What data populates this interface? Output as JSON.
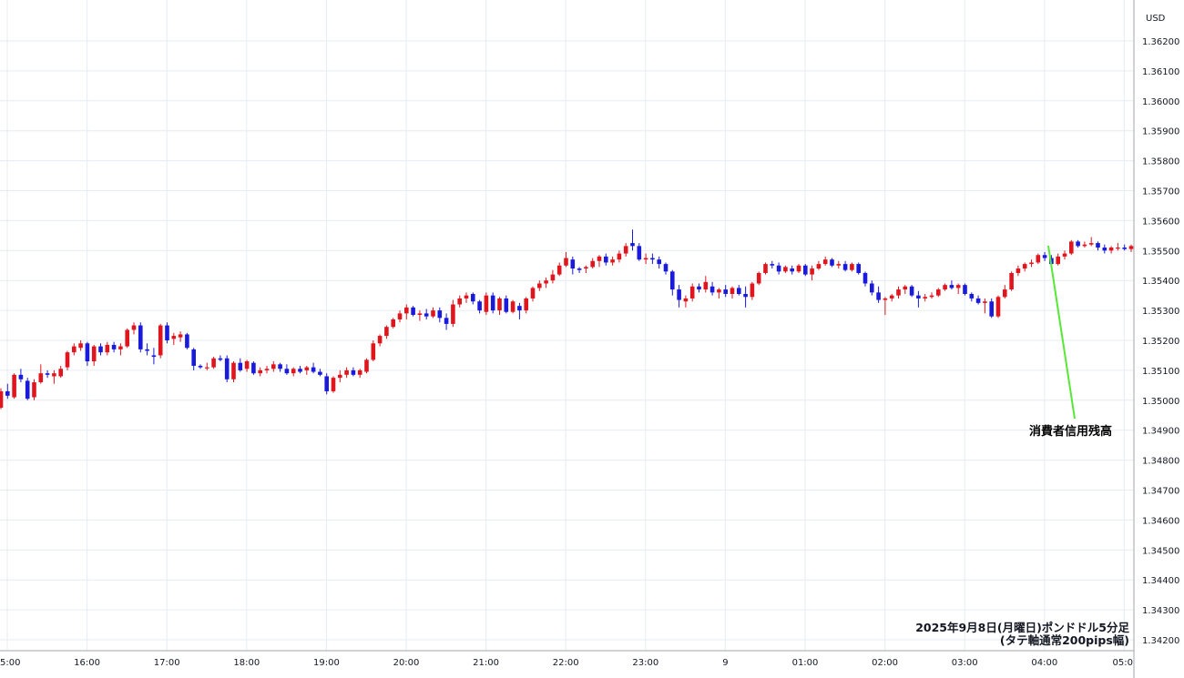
{
  "chart_data": {
    "type": "candlestick",
    "currency_label": "USD",
    "caption_line1": "2025年9月8日(月曜日)ポンドドル5分足",
    "caption_line2": "(タテ軸通常200pips幅)",
    "annotation": "消費者信用残高",
    "ylim": [
      1.3415,
      1.3627
    ],
    "y_ticks": [
      "1.36200",
      "1.36100",
      "1.36000",
      "1.35900",
      "1.35800",
      "1.35700",
      "1.35600",
      "1.35500",
      "1.35400",
      "1.35300",
      "1.35200",
      "1.35100",
      "1.35000",
      "1.34900",
      "1.34800",
      "1.34700",
      "1.34600",
      "1.34500",
      "1.34400",
      "1.34300",
      "1.34200"
    ],
    "x_ticks": [
      "5:00",
      "16:00",
      "17:00",
      "18:00",
      "19:00",
      "20:00",
      "21:00",
      "22:00",
      "23:00",
      "9",
      "01:00",
      "02:00",
      "03:00",
      "04:00",
      "05:0"
    ],
    "colors": {
      "up": "#e0161e",
      "down": "#1a1adb",
      "grid": "#e6ecf2",
      "axis": "#a0a4ab",
      "annotation_line": "#55e835"
    },
    "candles": [
      {
        "o": 1.34975,
        "h": 1.3504,
        "l": 1.3497,
        "c": 1.3503
      },
      {
        "o": 1.3503,
        "h": 1.35055,
        "l": 1.35005,
        "c": 1.35015
      },
      {
        "o": 1.3501,
        "h": 1.3509,
        "l": 1.35005,
        "c": 1.35085
      },
      {
        "o": 1.35085,
        "h": 1.35105,
        "l": 1.3506,
        "c": 1.3507
      },
      {
        "o": 1.35065,
        "h": 1.35075,
        "l": 1.35,
        "c": 1.35005
      },
      {
        "o": 1.3501,
        "h": 1.3507,
        "l": 1.35,
        "c": 1.3506
      },
      {
        "o": 1.3506,
        "h": 1.3512,
        "l": 1.35055,
        "c": 1.3509
      },
      {
        "o": 1.3509,
        "h": 1.351,
        "l": 1.35075,
        "c": 1.35085
      },
      {
        "o": 1.3508,
        "h": 1.351,
        "l": 1.35055,
        "c": 1.3509
      },
      {
        "o": 1.3508,
        "h": 1.35115,
        "l": 1.35075,
        "c": 1.35105
      },
      {
        "o": 1.3511,
        "h": 1.35165,
        "l": 1.351,
        "c": 1.3516
      },
      {
        "o": 1.3516,
        "h": 1.3519,
        "l": 1.3515,
        "c": 1.3518
      },
      {
        "o": 1.35175,
        "h": 1.352,
        "l": 1.35165,
        "c": 1.3519
      },
      {
        "o": 1.3519,
        "h": 1.35195,
        "l": 1.35115,
        "c": 1.3513
      },
      {
        "o": 1.3513,
        "h": 1.35185,
        "l": 1.35115,
        "c": 1.3518
      },
      {
        "o": 1.3518,
        "h": 1.3519,
        "l": 1.3515,
        "c": 1.3516
      },
      {
        "o": 1.3516,
        "h": 1.35195,
        "l": 1.3515,
        "c": 1.35185
      },
      {
        "o": 1.35185,
        "h": 1.35195,
        "l": 1.3516,
        "c": 1.3517
      },
      {
        "o": 1.3517,
        "h": 1.3519,
        "l": 1.3515,
        "c": 1.3518
      },
      {
        "o": 1.3518,
        "h": 1.3524,
        "l": 1.35175,
        "c": 1.35235
      },
      {
        "o": 1.35235,
        "h": 1.3526,
        "l": 1.3522,
        "c": 1.3525
      },
      {
        "o": 1.3525,
        "h": 1.3526,
        "l": 1.3516,
        "c": 1.3517
      },
      {
        "o": 1.3517,
        "h": 1.3519,
        "l": 1.3515,
        "c": 1.35165
      },
      {
        "o": 1.3515,
        "h": 1.35175,
        "l": 1.3512,
        "c": 1.35145
      },
      {
        "o": 1.3515,
        "h": 1.35255,
        "l": 1.3514,
        "c": 1.3525
      },
      {
        "o": 1.3525,
        "h": 1.3526,
        "l": 1.3519,
        "c": 1.352
      },
      {
        "o": 1.35205,
        "h": 1.35225,
        "l": 1.35185,
        "c": 1.35215
      },
      {
        "o": 1.3521,
        "h": 1.3523,
        "l": 1.35195,
        "c": 1.3522
      },
      {
        "o": 1.3522,
        "h": 1.35225,
        "l": 1.3517,
        "c": 1.35175
      },
      {
        "o": 1.3517,
        "h": 1.35175,
        "l": 1.351,
        "c": 1.35115
      },
      {
        "o": 1.35115,
        "h": 1.3512,
        "l": 1.35105,
        "c": 1.3511
      },
      {
        "o": 1.3511,
        "h": 1.35125,
        "l": 1.351,
        "c": 1.3511
      },
      {
        "o": 1.3511,
        "h": 1.35145,
        "l": 1.35105,
        "c": 1.3514
      },
      {
        "o": 1.3514,
        "h": 1.3515,
        "l": 1.3513,
        "c": 1.35135
      },
      {
        "o": 1.3514,
        "h": 1.3515,
        "l": 1.3506,
        "c": 1.3507
      },
      {
        "o": 1.3507,
        "h": 1.3513,
        "l": 1.3506,
        "c": 1.35125
      },
      {
        "o": 1.35125,
        "h": 1.3514,
        "l": 1.35095,
        "c": 1.351
      },
      {
        "o": 1.35105,
        "h": 1.35135,
        "l": 1.35095,
        "c": 1.3513
      },
      {
        "o": 1.35125,
        "h": 1.3513,
        "l": 1.35085,
        "c": 1.3509
      },
      {
        "o": 1.3509,
        "h": 1.3511,
        "l": 1.3508,
        "c": 1.351
      },
      {
        "o": 1.351,
        "h": 1.35115,
        "l": 1.3509,
        "c": 1.35105
      },
      {
        "o": 1.35105,
        "h": 1.3513,
        "l": 1.35095,
        "c": 1.3512
      },
      {
        "o": 1.3512,
        "h": 1.35125,
        "l": 1.35095,
        "c": 1.35105
      },
      {
        "o": 1.35105,
        "h": 1.3512,
        "l": 1.35085,
        "c": 1.3509
      },
      {
        "o": 1.3509,
        "h": 1.3511,
        "l": 1.3508,
        "c": 1.35105
      },
      {
        "o": 1.35105,
        "h": 1.35115,
        "l": 1.3509,
        "c": 1.35095
      },
      {
        "o": 1.351,
        "h": 1.35115,
        "l": 1.35085,
        "c": 1.3511
      },
      {
        "o": 1.3511,
        "h": 1.35125,
        "l": 1.3509,
        "c": 1.35095
      },
      {
        "o": 1.35095,
        "h": 1.35105,
        "l": 1.3508,
        "c": 1.35085
      },
      {
        "o": 1.3508,
        "h": 1.3509,
        "l": 1.3502,
        "c": 1.3503
      },
      {
        "o": 1.3503,
        "h": 1.3508,
        "l": 1.35025,
        "c": 1.35075
      },
      {
        "o": 1.35075,
        "h": 1.351,
        "l": 1.3506,
        "c": 1.35085
      },
      {
        "o": 1.35085,
        "h": 1.3511,
        "l": 1.35075,
        "c": 1.351
      },
      {
        "o": 1.351,
        "h": 1.3511,
        "l": 1.3508,
        "c": 1.35085
      },
      {
        "o": 1.35085,
        "h": 1.35105,
        "l": 1.35075,
        "c": 1.351
      },
      {
        "o": 1.35095,
        "h": 1.3514,
        "l": 1.3509,
        "c": 1.35135
      },
      {
        "o": 1.35135,
        "h": 1.352,
        "l": 1.3513,
        "c": 1.3519
      },
      {
        "o": 1.3519,
        "h": 1.3522,
        "l": 1.3518,
        "c": 1.35215
      },
      {
        "o": 1.35215,
        "h": 1.3525,
        "l": 1.35205,
        "c": 1.35245
      },
      {
        "o": 1.35245,
        "h": 1.35275,
        "l": 1.3524,
        "c": 1.3527
      },
      {
        "o": 1.3527,
        "h": 1.353,
        "l": 1.3526,
        "c": 1.3529
      },
      {
        "o": 1.3529,
        "h": 1.3532,
        "l": 1.3527,
        "c": 1.3531
      },
      {
        "o": 1.3531,
        "h": 1.35315,
        "l": 1.3528,
        "c": 1.35285
      },
      {
        "o": 1.35285,
        "h": 1.353,
        "l": 1.35265,
        "c": 1.3529
      },
      {
        "o": 1.3529,
        "h": 1.35305,
        "l": 1.3527,
        "c": 1.3528
      },
      {
        "o": 1.3528,
        "h": 1.3531,
        "l": 1.35275,
        "c": 1.353
      },
      {
        "o": 1.353,
        "h": 1.3531,
        "l": 1.3526,
        "c": 1.35275
      },
      {
        "o": 1.35275,
        "h": 1.3529,
        "l": 1.35235,
        "c": 1.35255
      },
      {
        "o": 1.35255,
        "h": 1.35335,
        "l": 1.35245,
        "c": 1.3532
      },
      {
        "o": 1.3532,
        "h": 1.3535,
        "l": 1.3531,
        "c": 1.3534
      },
      {
        "o": 1.3534,
        "h": 1.3536,
        "l": 1.35325,
        "c": 1.3535
      },
      {
        "o": 1.35355,
        "h": 1.3536,
        "l": 1.3532,
        "c": 1.3533
      },
      {
        "o": 1.3533,
        "h": 1.35335,
        "l": 1.3529,
        "c": 1.353
      },
      {
        "o": 1.35295,
        "h": 1.3536,
        "l": 1.35285,
        "c": 1.3535
      },
      {
        "o": 1.3535,
        "h": 1.3536,
        "l": 1.3529,
        "c": 1.353
      },
      {
        "o": 1.353,
        "h": 1.35345,
        "l": 1.35285,
        "c": 1.3534
      },
      {
        "o": 1.3534,
        "h": 1.3535,
        "l": 1.3529,
        "c": 1.35295
      },
      {
        "o": 1.35295,
        "h": 1.35335,
        "l": 1.3529,
        "c": 1.3533
      },
      {
        "o": 1.35315,
        "h": 1.35325,
        "l": 1.3527,
        "c": 1.353
      },
      {
        "o": 1.353,
        "h": 1.35345,
        "l": 1.3529,
        "c": 1.3534
      },
      {
        "o": 1.3534,
        "h": 1.3538,
        "l": 1.3533,
        "c": 1.35375
      },
      {
        "o": 1.35375,
        "h": 1.354,
        "l": 1.35365,
        "c": 1.3539
      },
      {
        "o": 1.3539,
        "h": 1.3541,
        "l": 1.35375,
        "c": 1.354
      },
      {
        "o": 1.354,
        "h": 1.35435,
        "l": 1.3539,
        "c": 1.3542
      },
      {
        "o": 1.3542,
        "h": 1.3546,
        "l": 1.35415,
        "c": 1.3545
      },
      {
        "o": 1.3545,
        "h": 1.35495,
        "l": 1.35445,
        "c": 1.35475
      },
      {
        "o": 1.3547,
        "h": 1.3548,
        "l": 1.3542,
        "c": 1.3544
      },
      {
        "o": 1.3544,
        "h": 1.35445,
        "l": 1.35425,
        "c": 1.35435
      },
      {
        "o": 1.3544,
        "h": 1.3545,
        "l": 1.35425,
        "c": 1.35445
      },
      {
        "o": 1.35445,
        "h": 1.35475,
        "l": 1.3544,
        "c": 1.35465
      },
      {
        "o": 1.35465,
        "h": 1.35485,
        "l": 1.35445,
        "c": 1.3548
      },
      {
        "o": 1.3548,
        "h": 1.3549,
        "l": 1.3545,
        "c": 1.3546
      },
      {
        "o": 1.3546,
        "h": 1.3548,
        "l": 1.3545,
        "c": 1.3547
      },
      {
        "o": 1.3547,
        "h": 1.355,
        "l": 1.3546,
        "c": 1.3549
      },
      {
        "o": 1.3549,
        "h": 1.35525,
        "l": 1.3548,
        "c": 1.35515
      },
      {
        "o": 1.35525,
        "h": 1.3557,
        "l": 1.355,
        "c": 1.35515
      },
      {
        "o": 1.35515,
        "h": 1.35525,
        "l": 1.35465,
        "c": 1.3547
      },
      {
        "o": 1.3547,
        "h": 1.3549,
        "l": 1.35455,
        "c": 1.35475
      },
      {
        "o": 1.35475,
        "h": 1.3549,
        "l": 1.35455,
        "c": 1.3547
      },
      {
        "o": 1.3547,
        "h": 1.3548,
        "l": 1.3544,
        "c": 1.35455
      },
      {
        "o": 1.35455,
        "h": 1.3546,
        "l": 1.3542,
        "c": 1.3543
      },
      {
        "o": 1.3543,
        "h": 1.35435,
        "l": 1.3535,
        "c": 1.3537
      },
      {
        "o": 1.3537,
        "h": 1.35385,
        "l": 1.3531,
        "c": 1.35335
      },
      {
        "o": 1.3533,
        "h": 1.3535,
        "l": 1.3531,
        "c": 1.3534
      },
      {
        "o": 1.3534,
        "h": 1.3539,
        "l": 1.3533,
        "c": 1.3538
      },
      {
        "o": 1.3538,
        "h": 1.3539,
        "l": 1.3536,
        "c": 1.3537
      },
      {
        "o": 1.3537,
        "h": 1.35415,
        "l": 1.3536,
        "c": 1.35395
      },
      {
        "o": 1.3538,
        "h": 1.35395,
        "l": 1.3535,
        "c": 1.3536
      },
      {
        "o": 1.3536,
        "h": 1.35375,
        "l": 1.3534,
        "c": 1.3537
      },
      {
        "o": 1.3537,
        "h": 1.35385,
        "l": 1.35345,
        "c": 1.35355
      },
      {
        "o": 1.35355,
        "h": 1.3538,
        "l": 1.3534,
        "c": 1.35375
      },
      {
        "o": 1.35375,
        "h": 1.35385,
        "l": 1.3535,
        "c": 1.35355
      },
      {
        "o": 1.35355,
        "h": 1.3538,
        "l": 1.3531,
        "c": 1.35345
      },
      {
        "o": 1.35345,
        "h": 1.35395,
        "l": 1.35335,
        "c": 1.3539
      },
      {
        "o": 1.3539,
        "h": 1.3543,
        "l": 1.35385,
        "c": 1.35425
      },
      {
        "o": 1.35425,
        "h": 1.3546,
        "l": 1.3542,
        "c": 1.35455
      },
      {
        "o": 1.35455,
        "h": 1.35465,
        "l": 1.3544,
        "c": 1.3545
      },
      {
        "o": 1.3545,
        "h": 1.3546,
        "l": 1.3542,
        "c": 1.3543
      },
      {
        "o": 1.3543,
        "h": 1.3545,
        "l": 1.35425,
        "c": 1.35445
      },
      {
        "o": 1.3544,
        "h": 1.3545,
        "l": 1.3542,
        "c": 1.3543
      },
      {
        "o": 1.3543,
        "h": 1.35455,
        "l": 1.35425,
        "c": 1.3545
      },
      {
        "o": 1.3545,
        "h": 1.35455,
        "l": 1.35415,
        "c": 1.3542
      },
      {
        "o": 1.3542,
        "h": 1.3545,
        "l": 1.354,
        "c": 1.3544
      },
      {
        "o": 1.3544,
        "h": 1.35465,
        "l": 1.35435,
        "c": 1.35455
      },
      {
        "o": 1.35455,
        "h": 1.3548,
        "l": 1.3545,
        "c": 1.3547
      },
      {
        "o": 1.3547,
        "h": 1.35475,
        "l": 1.35445,
        "c": 1.3545
      },
      {
        "o": 1.3545,
        "h": 1.35465,
        "l": 1.3544,
        "c": 1.35455
      },
      {
        "o": 1.35455,
        "h": 1.35465,
        "l": 1.3543,
        "c": 1.35435
      },
      {
        "o": 1.35435,
        "h": 1.3546,
        "l": 1.3543,
        "c": 1.35455
      },
      {
        "o": 1.35455,
        "h": 1.3546,
        "l": 1.3542,
        "c": 1.35425
      },
      {
        "o": 1.35425,
        "h": 1.3543,
        "l": 1.3538,
        "c": 1.3539
      },
      {
        "o": 1.3539,
        "h": 1.354,
        "l": 1.3535,
        "c": 1.3536
      },
      {
        "o": 1.3536,
        "h": 1.3538,
        "l": 1.35325,
        "c": 1.35335
      },
      {
        "o": 1.35335,
        "h": 1.35345,
        "l": 1.35285,
        "c": 1.3534
      },
      {
        "o": 1.3534,
        "h": 1.35355,
        "l": 1.3533,
        "c": 1.3535
      },
      {
        "o": 1.3535,
        "h": 1.3538,
        "l": 1.3534,
        "c": 1.3537
      },
      {
        "o": 1.3537,
        "h": 1.35385,
        "l": 1.35355,
        "c": 1.3538
      },
      {
        "o": 1.3538,
        "h": 1.35385,
        "l": 1.35345,
        "c": 1.3535
      },
      {
        "o": 1.3535,
        "h": 1.35365,
        "l": 1.3531,
        "c": 1.3534
      },
      {
        "o": 1.3534,
        "h": 1.35355,
        "l": 1.3533,
        "c": 1.35345
      },
      {
        "o": 1.35345,
        "h": 1.3536,
        "l": 1.3534,
        "c": 1.3535
      },
      {
        "o": 1.3535,
        "h": 1.35375,
        "l": 1.35345,
        "c": 1.3537
      },
      {
        "o": 1.3537,
        "h": 1.3539,
        "l": 1.35365,
        "c": 1.35385
      },
      {
        "o": 1.35385,
        "h": 1.354,
        "l": 1.3537,
        "c": 1.35375
      },
      {
        "o": 1.35375,
        "h": 1.3539,
        "l": 1.35355,
        "c": 1.35385
      },
      {
        "o": 1.35385,
        "h": 1.3539,
        "l": 1.3535,
        "c": 1.35355
      },
      {
        "o": 1.35355,
        "h": 1.3536,
        "l": 1.3533,
        "c": 1.3534
      },
      {
        "o": 1.3534,
        "h": 1.3535,
        "l": 1.3532,
        "c": 1.35325
      },
      {
        "o": 1.35325,
        "h": 1.3534,
        "l": 1.3529,
        "c": 1.3533
      },
      {
        "o": 1.3533,
        "h": 1.3534,
        "l": 1.35275,
        "c": 1.3528
      },
      {
        "o": 1.3528,
        "h": 1.3535,
        "l": 1.35275,
        "c": 1.35345
      },
      {
        "o": 1.35345,
        "h": 1.35385,
        "l": 1.3534,
        "c": 1.3537
      },
      {
        "o": 1.3537,
        "h": 1.3543,
        "l": 1.35365,
        "c": 1.35425
      },
      {
        "o": 1.35425,
        "h": 1.3545,
        "l": 1.35415,
        "c": 1.3544
      },
      {
        "o": 1.3544,
        "h": 1.3546,
        "l": 1.3543,
        "c": 1.35455
      },
      {
        "o": 1.35455,
        "h": 1.3547,
        "l": 1.35445,
        "c": 1.3546
      },
      {
        "o": 1.3546,
        "h": 1.3549,
        "l": 1.35455,
        "c": 1.35485
      },
      {
        "o": 1.35485,
        "h": 1.35495,
        "l": 1.35465,
        "c": 1.35475
      },
      {
        "o": 1.35475,
        "h": 1.35485,
        "l": 1.35445,
        "c": 1.35455
      },
      {
        "o": 1.35455,
        "h": 1.3549,
        "l": 1.3545,
        "c": 1.3548
      },
      {
        "o": 1.3548,
        "h": 1.355,
        "l": 1.3547,
        "c": 1.3549
      },
      {
        "o": 1.3549,
        "h": 1.35535,
        "l": 1.35485,
        "c": 1.3553
      },
      {
        "o": 1.3553,
        "h": 1.35535,
        "l": 1.3551,
        "c": 1.35515
      },
      {
        "o": 1.35515,
        "h": 1.3553,
        "l": 1.3551,
        "c": 1.3552
      },
      {
        "o": 1.3552,
        "h": 1.35545,
        "l": 1.35515,
        "c": 1.35525
      },
      {
        "o": 1.35525,
        "h": 1.3553,
        "l": 1.355,
        "c": 1.3551
      },
      {
        "o": 1.3551,
        "h": 1.3552,
        "l": 1.3549,
        "c": 1.355
      },
      {
        "o": 1.355,
        "h": 1.35515,
        "l": 1.3549,
        "c": 1.3551
      },
      {
        "o": 1.3551,
        "h": 1.35525,
        "l": 1.355,
        "c": 1.3551
      },
      {
        "o": 1.3551,
        "h": 1.3552,
        "l": 1.355,
        "c": 1.35505
      },
      {
        "o": 1.35505,
        "h": 1.3552,
        "l": 1.35495,
        "c": 1.35515
      },
      {
        "o": 1.35515,
        "h": 1.35525,
        "l": 1.35505,
        "c": 1.35515
      },
      {
        "o": 1.35515,
        "h": 1.35525,
        "l": 1.35505,
        "c": 1.3552
      },
      {
        "o": 1.3552,
        "h": 1.35525,
        "l": 1.355,
        "c": 1.35505
      },
      {
        "o": 1.35505,
        "h": 1.35515,
        "l": 1.35495,
        "c": 1.355
      }
    ]
  }
}
